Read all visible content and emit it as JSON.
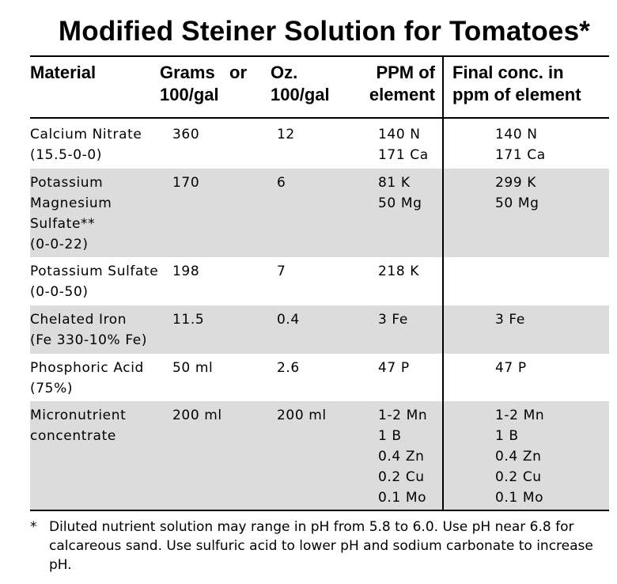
{
  "title": "Modified Steiner Solution for Tomatoes*",
  "headers": {
    "material": "Material",
    "grams": "Grams   or\n100/gal",
    "oz": "Oz.\n100/gal",
    "ppm": "PPM of\nelement",
    "final": "Final conc. in\nppm of element"
  },
  "rows": [
    {
      "material": "Calcium Nitrate\n(15.5-0-0)",
      "grams": "360",
      "oz": "12",
      "ppm": "140 N\n171 Ca",
      "final": "140 N\n171 Ca"
    },
    {
      "material": "Potassium\nMagnesium\nSulfate**\n(0-0-22)",
      "grams": "170",
      "oz": "6",
      "ppm": "81 K\n50 Mg",
      "final": "299 K\n50 Mg"
    },
    {
      "material": "Potassium Sulfate\n(0-0-50)",
      "grams": "198",
      "oz": "7",
      "ppm": "218 K",
      "final": ""
    },
    {
      "material": "Chelated Iron\n(Fe 330-10% Fe)",
      "grams": "11.5",
      "oz": "0.4",
      "ppm": "3 Fe",
      "final": "3 Fe"
    },
    {
      "material": "Phosphoric Acid\n(75%)",
      "grams": "50 ml",
      "oz": "2.6",
      "ppm": "47 P",
      "final": "47 P"
    },
    {
      "material": "Micronutrient\nconcentrate",
      "grams": "200 ml",
      "oz": "200 ml",
      "ppm": "1-2 Mn\n1 B\n0.4 Zn\n0.2 Cu\n0.1 Mo",
      "final": "1-2 Mn\n1 B\n0.4 Zn\n0.2 Cu\n0.1 Mo"
    }
  ],
  "footnote": {
    "marker": "*",
    "text": "Diluted nutrient solution may range in pH from 5.8 to 6.0.  Use pH near 6.8 for calcareous sand. Use sulfuric acid to lower pH and sodium carbonate to increase pH."
  }
}
